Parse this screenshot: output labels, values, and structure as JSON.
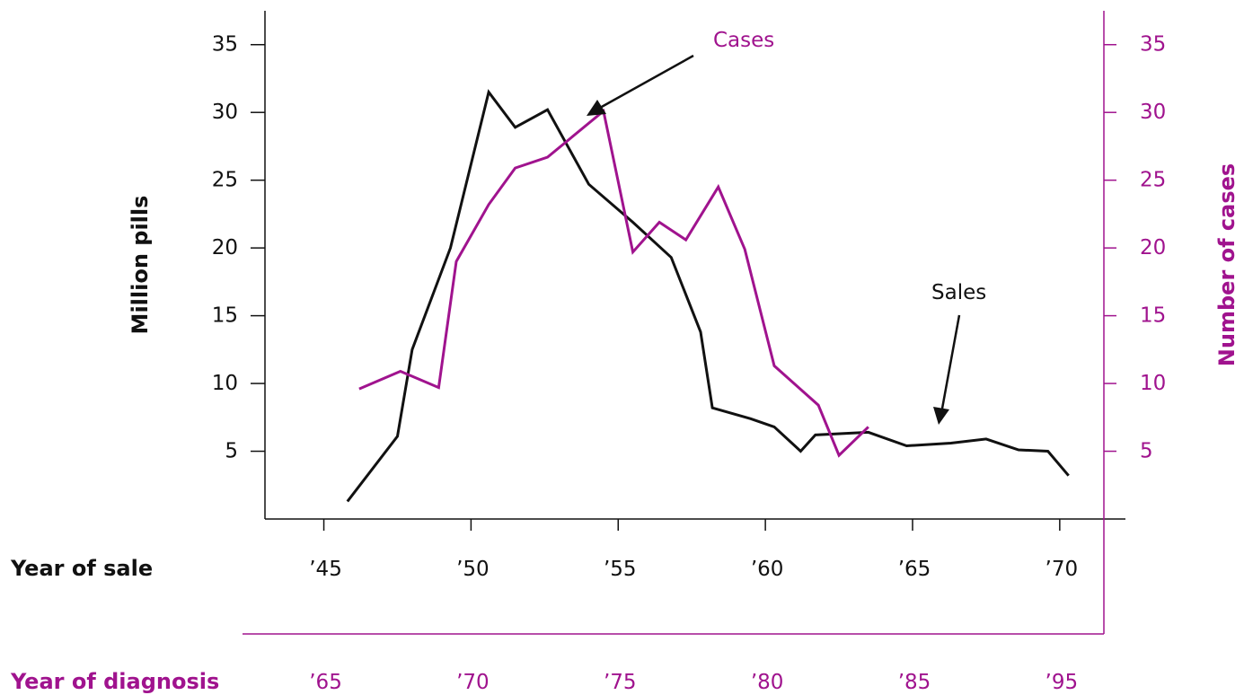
{
  "chart_data": {
    "type": "line",
    "colors": {
      "sales": "#111111",
      "cases": "#a0138e"
    },
    "left_axis": {
      "title": "Million pills",
      "ticks": [
        5,
        10,
        15,
        20,
        25,
        30,
        35
      ],
      "range": [
        0,
        37.5
      ]
    },
    "right_axis": {
      "title": "Number of cases",
      "ticks": [
        5,
        10,
        15,
        20,
        25,
        30,
        35
      ],
      "range": [
        0,
        37.5
      ]
    },
    "sale_axis": {
      "title": "Year of sale",
      "ticks": [
        "’45",
        "’50",
        "’55",
        "’60",
        "’65",
        "’70"
      ],
      "tick_values": [
        1945,
        1950,
        1955,
        1960,
        1965,
        1970
      ],
      "range": [
        1943,
        1971.5
      ]
    },
    "diagnosis_axis": {
      "title": "Year of diagnosis",
      "ticks": [
        "’65",
        "’70",
        "’75",
        "’80",
        "’85",
        "’95"
      ]
    },
    "series": [
      {
        "name": "Sales",
        "axis": "left",
        "points": [
          [
            1945.8,
            1.3
          ],
          [
            1947.5,
            6.1
          ],
          [
            1948.0,
            12.5
          ],
          [
            1949.3,
            20.0
          ],
          [
            1950.6,
            31.5
          ],
          [
            1951.5,
            28.9
          ],
          [
            1952.6,
            30.2
          ],
          [
            1954.0,
            24.7
          ],
          [
            1955.5,
            21.9
          ],
          [
            1956.8,
            19.3
          ],
          [
            1957.8,
            13.8
          ],
          [
            1958.2,
            8.2
          ],
          [
            1959.5,
            7.4
          ],
          [
            1960.3,
            6.8
          ],
          [
            1961.2,
            5.0
          ],
          [
            1961.7,
            6.2
          ],
          [
            1963.5,
            6.4
          ],
          [
            1964.8,
            5.4
          ],
          [
            1966.3,
            5.6
          ],
          [
            1967.5,
            5.9
          ],
          [
            1968.6,
            5.1
          ],
          [
            1969.6,
            5.0
          ],
          [
            1970.3,
            3.2
          ]
        ]
      },
      {
        "name": "Cases",
        "axis": "right",
        "points": [
          [
            1946.2,
            9.6
          ],
          [
            1947.6,
            10.9
          ],
          [
            1948.9,
            9.7
          ],
          [
            1949.5,
            19.0
          ],
          [
            1950.6,
            23.2
          ],
          [
            1951.5,
            25.9
          ],
          [
            1952.6,
            26.7
          ],
          [
            1954.5,
            30.1
          ],
          [
            1955.5,
            19.7
          ],
          [
            1956.4,
            21.9
          ],
          [
            1957.3,
            20.6
          ],
          [
            1958.4,
            24.5
          ],
          [
            1959.3,
            19.9
          ],
          [
            1960.3,
            11.3
          ],
          [
            1961.8,
            8.4
          ],
          [
            1962.5,
            4.7
          ],
          [
            1963.5,
            6.8
          ]
        ]
      }
    ],
    "annotations": [
      {
        "text": "Cases",
        "series": "Cases"
      },
      {
        "text": "Sales",
        "series": "Sales"
      }
    ]
  }
}
